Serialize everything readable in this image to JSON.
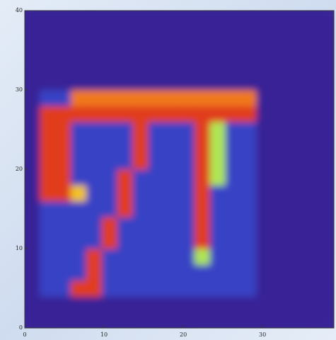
{
  "chart_data": {
    "type": "heatmap",
    "xlim": [
      0,
      39
    ],
    "ylim": [
      0,
      40
    ],
    "xticks": [
      0,
      10,
      20,
      30
    ],
    "yticks": [
      0,
      10,
      20,
      30,
      40
    ],
    "z": [
      [
        1,
        1,
        1,
        1,
        1,
        1,
        1,
        1,
        1,
        1,
        1,
        1,
        1,
        1,
        1,
        1,
        1,
        1,
        1,
        1
      ],
      [
        1,
        1,
        1,
        1,
        1,
        1,
        1,
        1,
        1,
        1,
        1,
        1,
        1,
        1,
        1,
        1,
        1,
        1,
        1,
        1
      ],
      [
        1,
        2,
        2,
        9,
        9,
        2,
        2,
        2,
        2,
        2,
        2,
        2,
        2,
        2,
        2,
        1,
        1,
        1,
        1,
        1
      ],
      [
        1,
        2,
        2,
        2,
        9,
        2,
        2,
        2,
        2,
        2,
        2,
        2,
        2,
        2,
        2,
        1,
        1,
        1,
        1,
        1
      ],
      [
        1,
        2,
        2,
        2,
        9,
        2,
        2,
        2,
        2,
        2,
        2,
        6,
        2,
        2,
        2,
        1,
        1,
        1,
        1,
        1
      ],
      [
        1,
        2,
        2,
        2,
        2,
        9,
        2,
        2,
        2,
        2,
        2,
        9,
        2,
        2,
        2,
        1,
        1,
        1,
        1,
        1
      ],
      [
        1,
        2,
        2,
        2,
        2,
        9,
        2,
        2,
        2,
        2,
        2,
        9,
        2,
        2,
        2,
        1,
        1,
        1,
        1,
        1
      ],
      [
        1,
        2,
        2,
        2,
        2,
        2,
        9,
        2,
        2,
        2,
        2,
        9,
        2,
        2,
        2,
        1,
        1,
        1,
        1,
        1
      ],
      [
        1,
        9,
        9,
        7,
        2,
        2,
        9,
        2,
        2,
        2,
        2,
        9,
        2,
        2,
        2,
        1,
        1,
        1,
        1,
        1
      ],
      [
        1,
        9,
        9,
        2,
        2,
        2,
        9,
        2,
        2,
        2,
        2,
        9,
        6,
        2,
        2,
        1,
        1,
        1,
        1,
        1
      ],
      [
        1,
        9,
        9,
        2,
        2,
        2,
        2,
        9,
        2,
        2,
        2,
        9,
        6,
        2,
        2,
        1,
        1,
        1,
        1,
        1
      ],
      [
        1,
        9,
        9,
        2,
        2,
        2,
        2,
        9,
        2,
        2,
        2,
        9,
        6,
        2,
        2,
        1,
        1,
        1,
        1,
        1
      ],
      [
        1,
        9,
        9,
        2,
        2,
        2,
        2,
        9,
        2,
        2,
        2,
        9,
        6,
        2,
        2,
        1,
        1,
        1,
        1,
        1
      ],
      [
        1,
        9,
        9,
        9,
        9,
        9,
        9,
        9,
        9,
        9,
        9,
        9,
        9,
        9,
        9,
        1,
        1,
        1,
        1,
        1
      ],
      [
        1,
        2,
        2,
        8,
        8,
        8,
        8,
        8,
        8,
        8,
        8,
        8,
        8,
        8,
        8,
        1,
        1,
        1,
        1,
        1
      ],
      [
        1,
        1,
        1,
        1,
        1,
        1,
        1,
        1,
        1,
        1,
        1,
        1,
        1,
        1,
        1,
        1,
        1,
        1,
        1,
        1
      ],
      [
        1,
        1,
        1,
        1,
        1,
        1,
        1,
        1,
        1,
        1,
        1,
        1,
        1,
        1,
        1,
        1,
        1,
        1,
        1,
        1
      ],
      [
        1,
        1,
        1,
        1,
        1,
        1,
        1,
        1,
        1,
        1,
        1,
        1,
        1,
        1,
        1,
        1,
        1,
        1,
        1,
        1
      ],
      [
        1,
        1,
        1,
        1,
        1,
        1,
        1,
        1,
        1,
        1,
        1,
        1,
        1,
        1,
        1,
        1,
        1,
        1,
        1,
        1
      ],
      [
        1,
        1,
        1,
        1,
        1,
        1,
        1,
        1,
        1,
        1,
        1,
        1,
        1,
        1,
        1,
        1,
        1,
        1,
        1,
        1
      ]
    ]
  }
}
